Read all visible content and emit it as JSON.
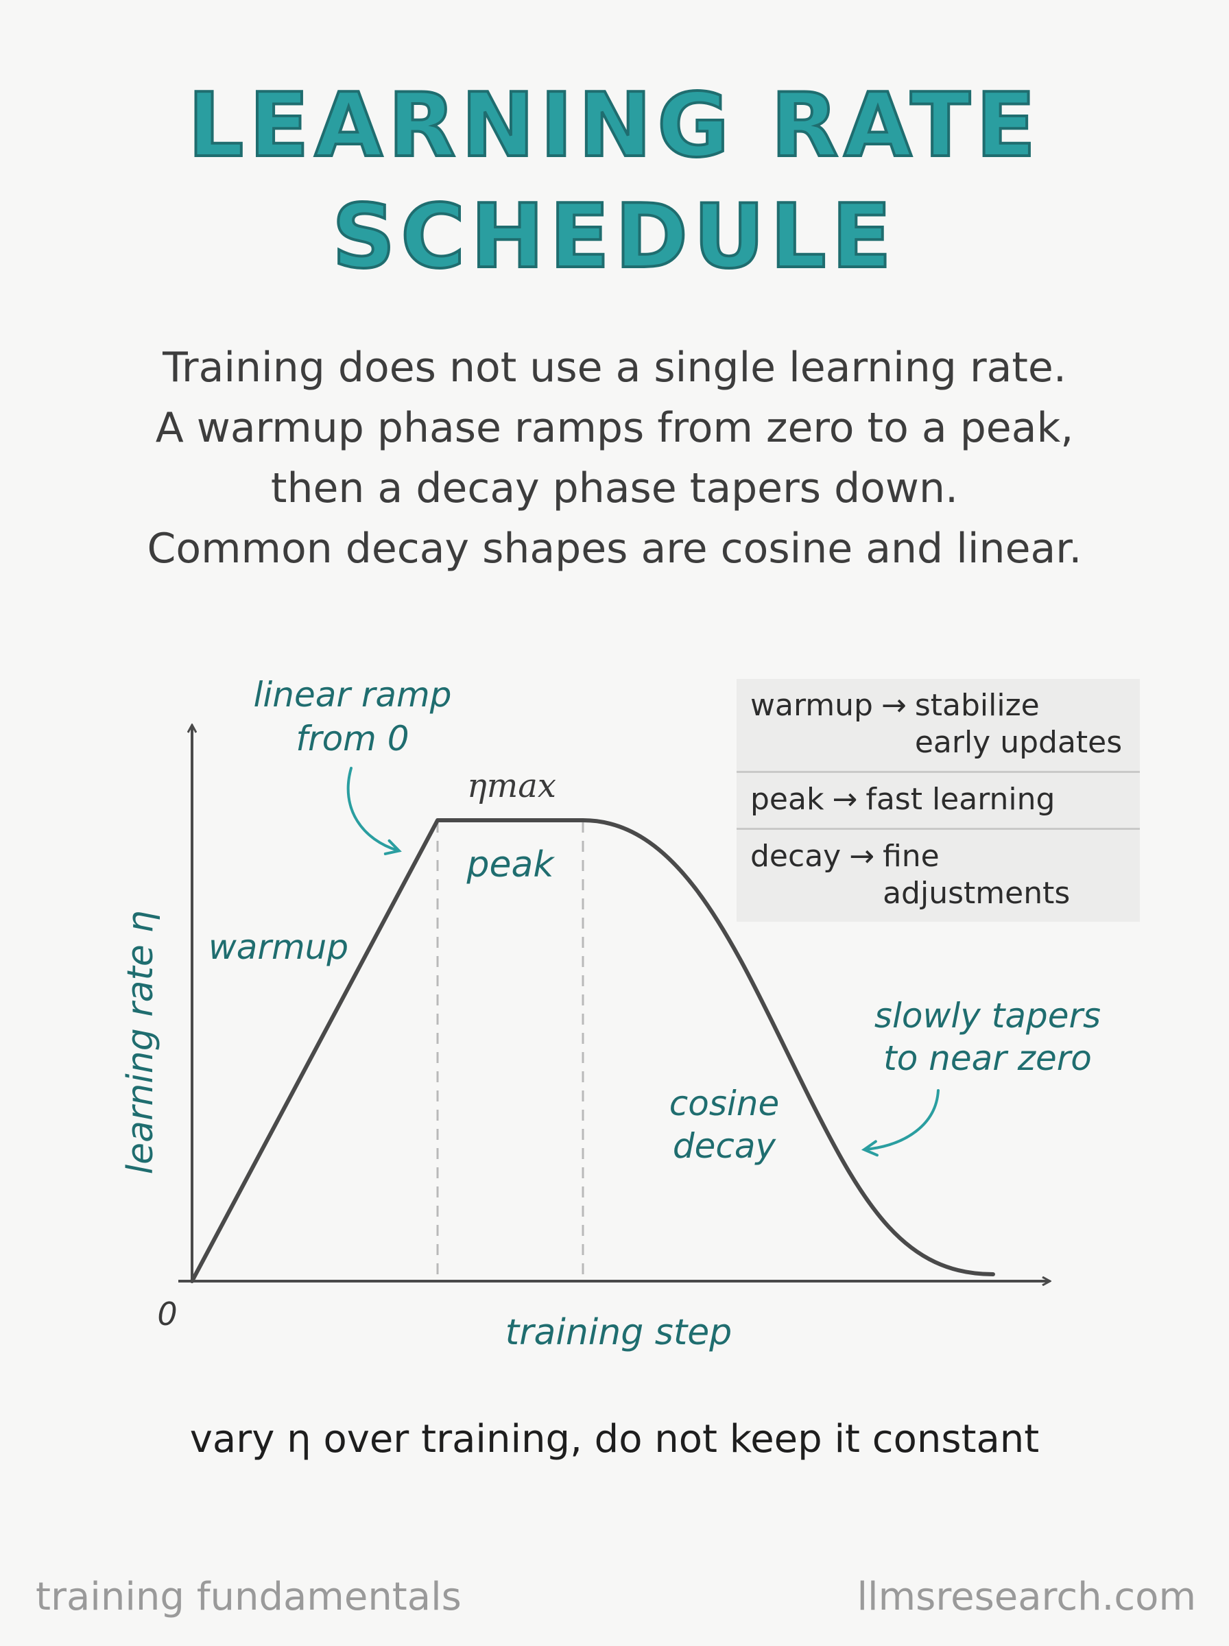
{
  "title": {
    "line1": "LEARNING RATE",
    "line2": "SCHEDULE"
  },
  "intro": [
    "Training does not use a single learning rate.",
    "A warmup phase ramps from zero to a peak,",
    "then a decay phase tapers down.",
    "Common decay shapes are cosine and linear."
  ],
  "diagram": {
    "y_axis_label": "learning rate η",
    "x_axis_label": "training step",
    "origin_label": "0",
    "peak_value_label": "ηmax",
    "phase_labels": {
      "warmup": "warmup",
      "peak": "peak",
      "decay_line1": "cosine",
      "decay_line2": "decay"
    },
    "annotations": {
      "ramp_line1": "linear ramp",
      "ramp_line2": "from 0",
      "tail_line1": "slowly tapers",
      "tail_line2": "to near zero"
    },
    "accent_color": "#1f6d6f",
    "curve_color": "#4a4a4a"
  },
  "legend": [
    {
      "key": "warmup",
      "arrow": "→",
      "value": "stabilize\nearly updates"
    },
    {
      "key": "peak",
      "arrow": "→",
      "value": "fast learning"
    },
    {
      "key": "decay",
      "arrow": "→",
      "value": "fine adjustments"
    }
  ],
  "footnote": "vary η over training, do not keep it constant",
  "footer": {
    "left": "training fundamentals",
    "right": "llmsresearch.com"
  }
}
